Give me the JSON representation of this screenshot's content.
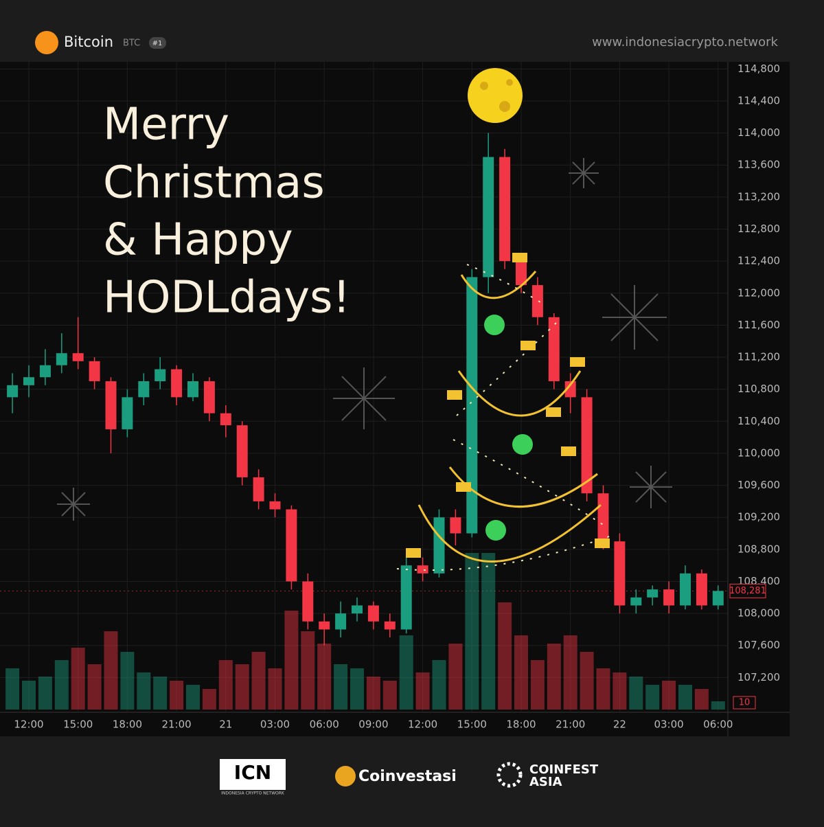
{
  "header": {
    "name": "Bitcoin",
    "symbol": "BTC",
    "rank": "#1",
    "website": "www.indonesiacrypto.network"
  },
  "greeting": [
    "Merry",
    "Christmas",
    "& Happy",
    "HODLdays!"
  ],
  "footer": {
    "icn": "ICN",
    "icn_sub": "INDONESIA CRYPTO NETWORK",
    "coinvestasi": "Coinvestasi",
    "coinfest": "COINFEST",
    "coinfest_sub": "ASIA"
  },
  "chart_data": {
    "type": "candlestick",
    "categories": [
      null,
      "12:00",
      null,
      null,
      "15:00",
      null,
      null,
      "18:00",
      null,
      null,
      "21:00",
      null,
      null,
      "21",
      null,
      null,
      "03:00",
      null,
      null,
      "06:00",
      null,
      null,
      "09:00",
      null,
      null,
      "12:00",
      null,
      null,
      "15:00",
      null,
      null,
      "18:00",
      null,
      null,
      "21:00",
      null,
      null,
      "22",
      null,
      null,
      "03:00",
      null,
      null,
      "06:00"
    ],
    "open": [
      110700,
      110850,
      110950,
      111100,
      111250,
      111150,
      110900,
      110300,
      110700,
      110900,
      111050,
      110700,
      110900,
      110500,
      110350,
      109700,
      109400,
      109300,
      108400,
      107900,
      107800,
      108000,
      108100,
      107900,
      107800,
      108600,
      108500,
      109200,
      109000,
      112200,
      113700,
      112400,
      112100,
      111700,
      110900,
      110700,
      109500,
      108900,
      108100,
      108200,
      108300,
      108100,
      108500,
      108100
    ],
    "close": [
      110850,
      110950,
      111100,
      111250,
      111150,
      110900,
      110300,
      110700,
      110900,
      111050,
      110700,
      110900,
      110500,
      110350,
      109700,
      109400,
      109300,
      108400,
      107900,
      107800,
      108000,
      108100,
      107900,
      107800,
      108600,
      108500,
      109200,
      109000,
      112200,
      113700,
      112400,
      112100,
      111700,
      110900,
      110700,
      109500,
      108900,
      108100,
      108200,
      108300,
      108100,
      108500,
      108100,
      108281
    ],
    "high": [
      111000,
      111100,
      111300,
      111500,
      111700,
      111200,
      110950,
      110800,
      111000,
      111200,
      111100,
      111000,
      110950,
      110600,
      110400,
      109800,
      109500,
      109350,
      108500,
      108000,
      108150,
      108200,
      108150,
      108000,
      108700,
      108700,
      109300,
      109300,
      112300,
      114000,
      113800,
      112500,
      112200,
      111750,
      111000,
      110800,
      109600,
      109000,
      108300,
      108350,
      108400,
      108600,
      108550,
      108350
    ],
    "low": [
      110500,
      110700,
      110850,
      111000,
      111050,
      110800,
      110000,
      110200,
      110600,
      110800,
      110600,
      110650,
      110400,
      110200,
      109600,
      109300,
      109200,
      108300,
      107800,
      107600,
      107700,
      107900,
      107800,
      107700,
      107750,
      108400,
      108450,
      108850,
      108950,
      112000,
      112300,
      112000,
      111600,
      110800,
      110500,
      109400,
      108800,
      108000,
      108000,
      108100,
      108000,
      108050,
      108050,
      108050
    ],
    "volume": [
      50,
      35,
      40,
      60,
      75,
      55,
      95,
      70,
      45,
      40,
      35,
      30,
      25,
      60,
      55,
      70,
      50,
      120,
      95,
      80,
      55,
      50,
      40,
      35,
      90,
      45,
      60,
      80,
      190,
      190,
      130,
      90,
      60,
      80,
      90,
      70,
      50,
      45,
      40,
      30,
      35,
      30,
      25,
      10
    ],
    "up_color": "#1b9e80",
    "down_color": "#f23645",
    "ylim": [
      106800,
      114880
    ],
    "yticks": [
      {
        "value": 107200,
        "label": "107,200"
      },
      {
        "value": 107600,
        "label": "107,600"
      },
      {
        "value": 108000,
        "label": "108,000"
      },
      {
        "value": 108400,
        "label": "108,400"
      },
      {
        "value": 108800,
        "label": "108,800"
      },
      {
        "value": 109200,
        "label": "109,200"
      },
      {
        "value": 109600,
        "label": "109,600"
      },
      {
        "value": 110000,
        "label": "110,000"
      },
      {
        "value": 110400,
        "label": "110,400"
      },
      {
        "value": 110800,
        "label": "110,800"
      },
      {
        "value": 111200,
        "label": "111,200"
      },
      {
        "value": 111600,
        "label": "111,600"
      },
      {
        "value": 112000,
        "label": "112,000"
      },
      {
        "value": 112400,
        "label": "112,400"
      },
      {
        "value": 112800,
        "label": "112,800"
      },
      {
        "value": 113200,
        "label": "113,200"
      },
      {
        "value": 113600,
        "label": "113,600"
      },
      {
        "value": 114000,
        "label": "114,000"
      },
      {
        "value": 114400,
        "label": "114,400"
      },
      {
        "value": 114800,
        "label": "114,800"
      }
    ],
    "price_tag": {
      "value": 108281,
      "label": "108,281"
    },
    "grid": true
  }
}
